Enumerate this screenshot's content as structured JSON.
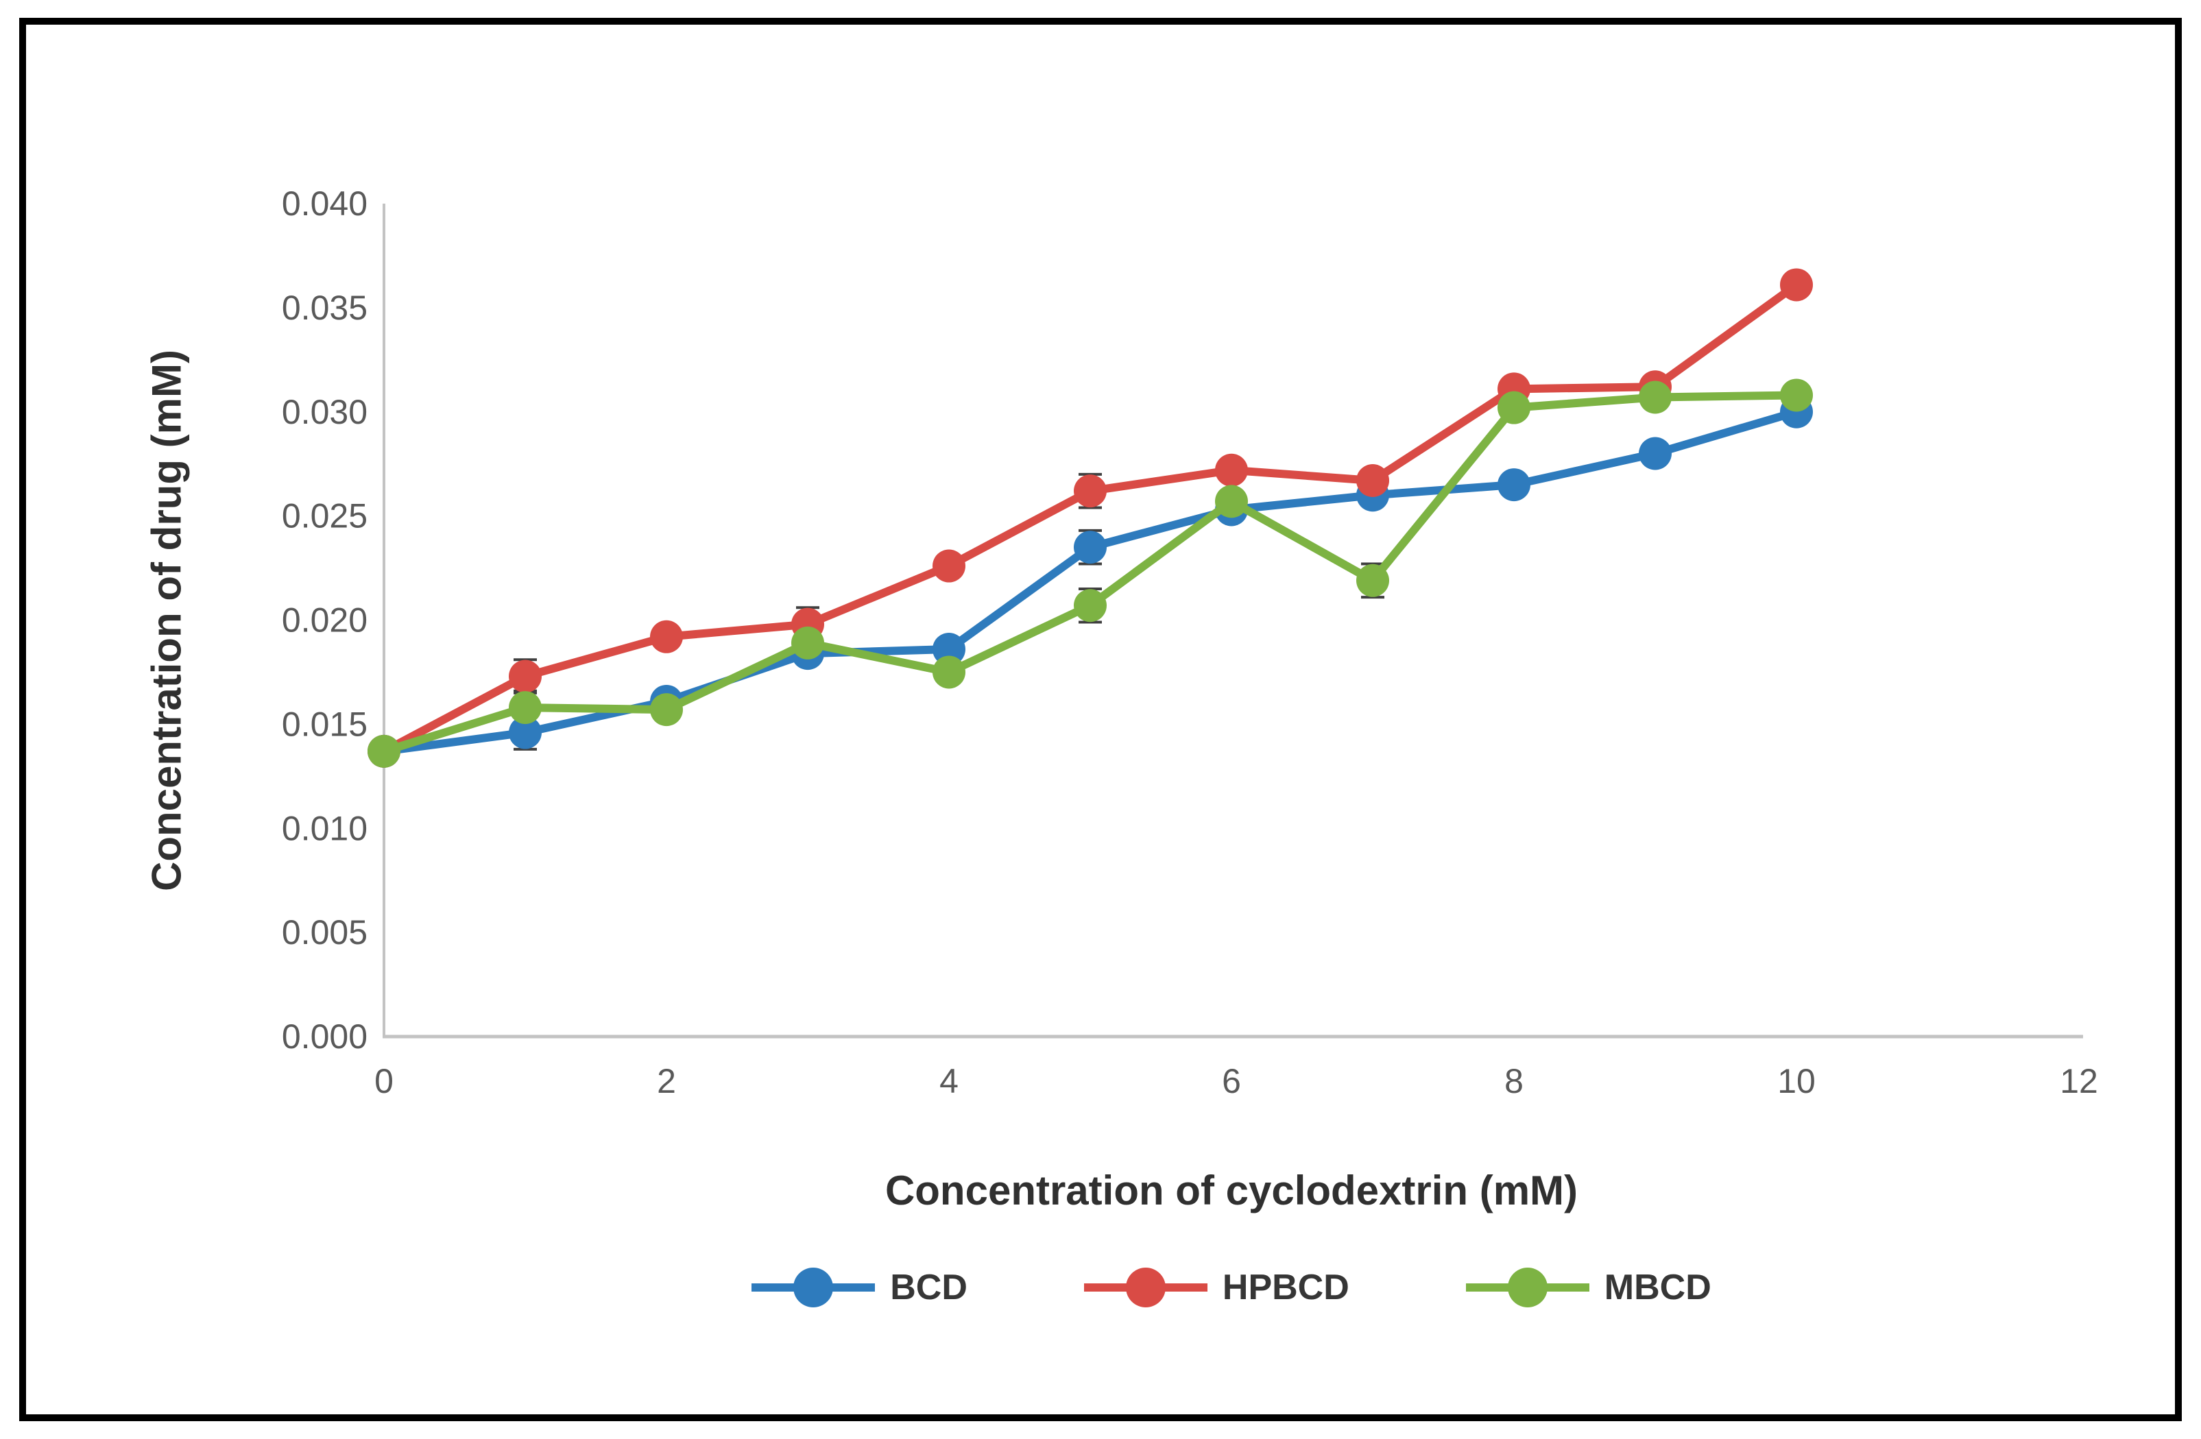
{
  "figure": {
    "background_color": "#ffffff",
    "border_color": "#000000"
  },
  "axis": {
    "line_color": "#c3c3c3",
    "tick_label_color": "#595959",
    "title_color": "#303030",
    "error_bar_color": "#404040"
  },
  "chart_data": {
    "type": "line",
    "title": "",
    "xlabel": "Concentration of cyclodextrin (mM)",
    "ylabel": "Concentration of drug (mM)",
    "grid": false,
    "legend_position": "bottom",
    "xlim": [
      0,
      12
    ],
    "ylim": [
      0,
      0.04
    ],
    "x": [
      0,
      1,
      2,
      3,
      4,
      5,
      6,
      7,
      8,
      9,
      10
    ],
    "x_ticks": [
      0,
      2,
      4,
      6,
      8,
      10,
      12
    ],
    "y_tick_values": [
      0.0,
      0.005,
      0.01,
      0.015,
      0.02,
      0.025,
      0.03,
      0.035,
      0.04
    ],
    "y_tick_labels": [
      "0.000",
      "0.005",
      "0.010",
      "0.015",
      "0.020",
      "0.025",
      "0.030",
      "0.035",
      "0.040"
    ],
    "series": [
      {
        "name": "BCD",
        "color": "#2e7bbd",
        "values": [
          0.0137,
          0.0146,
          0.0161,
          0.0184,
          0.0186,
          0.0235,
          0.0253,
          0.026,
          0.0265,
          0.028,
          0.03
        ]
      },
      {
        "name": "HPBCD",
        "color": "#d94b45",
        "values": [
          0.0137,
          0.0173,
          0.0192,
          0.0198,
          0.0226,
          0.0262,
          0.0272,
          0.0267,
          0.0311,
          0.0312,
          0.0361
        ]
      },
      {
        "name": "MBCD",
        "color": "#7db343",
        "values": [
          0.0137,
          0.0158,
          0.0157,
          0.0189,
          0.0175,
          0.0207,
          0.0257,
          0.0219,
          0.0302,
          0.0307,
          0.0308
        ]
      }
    ],
    "error_bar_half_height": 0.0008,
    "error_bars": [
      {
        "series": "BCD",
        "x": 1
      },
      {
        "series": "BCD",
        "x": 5
      },
      {
        "series": "HPBCD",
        "x": 1
      },
      {
        "series": "HPBCD",
        "x": 3
      },
      {
        "series": "HPBCD",
        "x": 5
      },
      {
        "series": "MBCD",
        "x": 1
      },
      {
        "series": "MBCD",
        "x": 5
      },
      {
        "series": "MBCD",
        "x": 7
      }
    ]
  }
}
